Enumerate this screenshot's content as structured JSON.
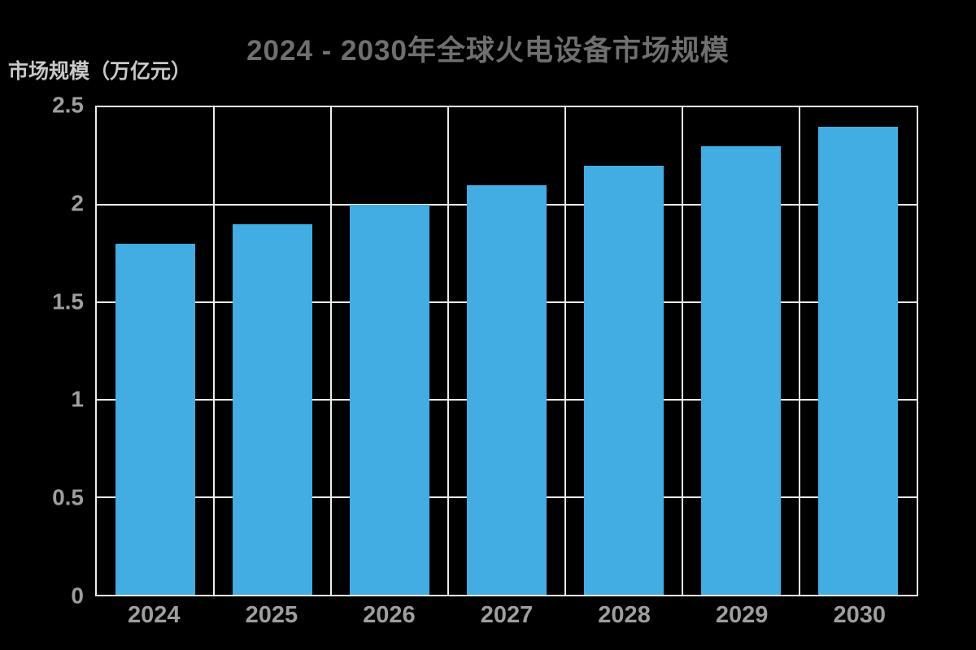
{
  "chart_data": {
    "type": "bar",
    "title": "2024 - 2030年全球火电设备市场规模",
    "ylabel": "市场规模（万亿元）",
    "xlabel": "",
    "categories": [
      "2024",
      "2025",
      "2026",
      "2027",
      "2028",
      "2029",
      "2030"
    ],
    "values": [
      1.8,
      1.9,
      2.0,
      2.1,
      2.2,
      2.3,
      2.4
    ],
    "ylim": [
      0,
      2.5
    ],
    "yticks": [
      0,
      0.5,
      1,
      1.5,
      2,
      2.5
    ],
    "grid": "full border with horizontal gridlines at each y tick and vertical gridlines at category boundaries, drawn behind bars",
    "legend": "none",
    "bar_width_fraction": 0.68
  },
  "colors": {
    "background": "#000000",
    "bar": "#41ADE2",
    "grid": "#EDEDED",
    "title_text": "#6F6F6F",
    "tick_text": "#9E9E9E",
    "ylabel_text": "#C8C8C8"
  }
}
